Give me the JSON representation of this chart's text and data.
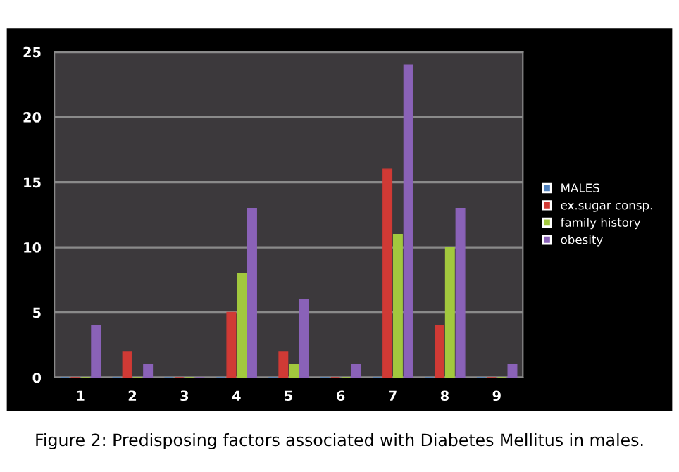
{
  "chart_data": {
    "type": "bar",
    "categories": [
      "1",
      "2",
      "3",
      "4",
      "5",
      "6",
      "7",
      "8",
      "9"
    ],
    "series": [
      {
        "name": "MALES",
        "color": "#4f81bd",
        "values": [
          0,
          0,
          0,
          0,
          0,
          0,
          0,
          0,
          0
        ]
      },
      {
        "name": "ex.sugar consp.",
        "color": "#d03a35",
        "values": [
          0,
          2,
          0,
          5,
          2,
          0,
          16,
          4,
          0
        ]
      },
      {
        "name": "family history",
        "color": "#a2c83e",
        "values": [
          0,
          0,
          0,
          8,
          1,
          0,
          11,
          10,
          0
        ]
      },
      {
        "name": "obesity",
        "color": "#8a62b8",
        "values": [
          4,
          1,
          0,
          13,
          6,
          1,
          24,
          13,
          1
        ]
      }
    ],
    "ylim": [
      0,
      25
    ],
    "yticks": [
      0,
      5,
      10,
      15,
      20,
      25
    ],
    "grid": "y",
    "legend": "right",
    "annotations": [
      "Figure 2: Predisposing factors associated with Diabetes Mellitus in males."
    ]
  }
}
